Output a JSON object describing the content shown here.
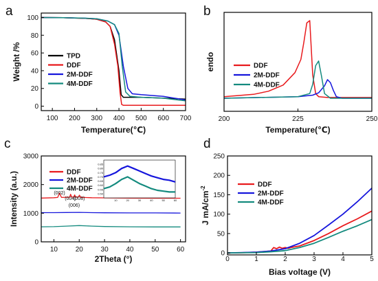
{
  "colors": {
    "TPD": "#000000",
    "DDF": "#e8191c",
    "2M-DDF": "#1515dc",
    "4M-DDF": "#138a7e"
  },
  "chart_data": [
    {
      "panel": "a",
      "type": "line",
      "xlabel": "Temperature(℃)",
      "ylabel": "Weight /%",
      "xlim": [
        50,
        700
      ],
      "ylim": [
        -5,
        105
      ],
      "xticks": [
        100,
        200,
        300,
        400,
        500,
        600,
        700
      ],
      "yticks": [
        0,
        20,
        40,
        60,
        80,
        100
      ],
      "legend": "center-right",
      "grid": false,
      "series": [
        {
          "name": "TPD",
          "color": "#000000",
          "x": [
            50,
            150,
            250,
            300,
            340,
            360,
            380,
            400,
            410,
            420,
            450,
            500,
            600,
            700
          ],
          "y": [
            100,
            99.7,
            99,
            98,
            95,
            90,
            75,
            40,
            13,
            10,
            10,
            10,
            9,
            8
          ]
        },
        {
          "name": "DDF",
          "color": "#e8191c",
          "x": [
            50,
            150,
            250,
            300,
            340,
            360,
            380,
            395,
            405,
            412,
            420,
            450,
            500,
            600,
            700
          ],
          "y": [
            100,
            99.7,
            99,
            98,
            95,
            90,
            70,
            45,
            15,
            2,
            1,
            1,
            1,
            1,
            1
          ]
        },
        {
          "name": "2M-DDF",
          "color": "#1515dc",
          "x": [
            50,
            150,
            250,
            300,
            350,
            380,
            400,
            420,
            440,
            460,
            500,
            600,
            700
          ],
          "y": [
            100,
            99.8,
            99.2,
            98.5,
            96,
            92,
            80,
            45,
            20,
            14,
            13,
            11,
            7
          ]
        },
        {
          "name": "4M-DDF",
          "color": "#138a7e",
          "x": [
            50,
            150,
            250,
            300,
            350,
            380,
            400,
            415,
            430,
            450,
            500,
            600,
            700
          ],
          "y": [
            100,
            99.8,
            99.2,
            98.5,
            96,
            92,
            82,
            45,
            16,
            11,
            10,
            9,
            6
          ]
        }
      ]
    },
    {
      "panel": "b",
      "type": "line",
      "xlabel": "Temperature(℃)",
      "ylabel": "endo",
      "xlim": [
        200,
        250
      ],
      "xticks": [
        200,
        225,
        250
      ],
      "legend": "center-left",
      "grid": false,
      "series": [
        {
          "name": "DDF",
          "color": "#e8191c",
          "x": [
            200,
            210,
            215,
            220,
            224,
            226,
            227,
            228,
            229,
            230,
            231,
            232,
            235,
            250
          ],
          "y": [
            0.02,
            0.05,
            0.09,
            0.17,
            0.33,
            0.5,
            0.72,
            0.97,
            1.0,
            0.3,
            0.06,
            0.02,
            0.01,
            0.01
          ]
        },
        {
          "name": "2M-DDF",
          "color": "#1515dc",
          "x": [
            200,
            225,
            230,
            232,
            234,
            235,
            236,
            237,
            238,
            240,
            250
          ],
          "y": [
            0.0,
            0.02,
            0.04,
            0.07,
            0.16,
            0.24,
            0.2,
            0.1,
            0.02,
            0.0,
            0.0
          ]
        },
        {
          "name": "4M-DDF",
          "color": "#138a7e",
          "x": [
            200,
            225,
            229,
            230,
            231,
            232,
            233,
            234,
            236,
            250
          ],
          "y": [
            0.0,
            0.02,
            0.06,
            0.18,
            0.42,
            0.48,
            0.28,
            0.06,
            0.0,
            0.0
          ]
        }
      ]
    },
    {
      "panel": "c",
      "type": "line",
      "xlabel": "2Theta (°)",
      "ylabel": "Intensity (a.u.)",
      "xlim": [
        5,
        62
      ],
      "ylim": [
        0,
        3000
      ],
      "xticks": [
        10,
        20,
        30,
        40,
        50,
        60
      ],
      "yticks": [
        0,
        1000,
        2000,
        3000
      ],
      "legend": "top-left",
      "grid": false,
      "peak_labels": [
        {
          "text": "(002)",
          "x": 12.2
        },
        {
          "text": "(004)",
          "x": 16.5
        },
        {
          "text": "(008)",
          "x": 20.0
        },
        {
          "text": "(006)",
          "x": 18.0
        }
      ],
      "series": [
        {
          "name": "DDF",
          "color": "#e8191c",
          "x": [
            5,
            10,
            11.5,
            12.2,
            13,
            16.2,
            16.6,
            17,
            17.8,
            18.2,
            18.6,
            19.6,
            20.1,
            20.6,
            25,
            30,
            40,
            50,
            60
          ],
          "y": [
            1530,
            1540,
            1550,
            1700,
            1550,
            1560,
            1660,
            1570,
            1560,
            1640,
            1565,
            1565,
            1630,
            1555,
            1540,
            1535,
            1530,
            1525,
            1525
          ]
        },
        {
          "name": "2M-DDF",
          "color": "#1515dc",
          "x": [
            5,
            10,
            15,
            20,
            25,
            30,
            40,
            50,
            60
          ],
          "y": [
            1020,
            1020,
            1025,
            1030,
            1020,
            1015,
            1010,
            1010,
            1005
          ]
        },
        {
          "name": "4M-DDF",
          "color": "#138a7e",
          "x": [
            5,
            10,
            15,
            20,
            25,
            30,
            40,
            50,
            60
          ],
          "y": [
            525,
            530,
            550,
            570,
            550,
            535,
            525,
            520,
            520
          ]
        }
      ],
      "inset": {
        "xlim": [
          0,
          60
        ],
        "ylim": [
          0.45,
          0.9
        ],
        "xticks": [
          10,
          20,
          30,
          40,
          50,
          60
        ],
        "yticks": [
          "0.85",
          "0.80",
          "0.75",
          "0.70",
          "0.65",
          "0.60",
          "0.55",
          "0.50"
        ],
        "series": [
          {
            "name": "2M-DDF",
            "color": "#1515dc",
            "x": [
              0,
              5,
              10,
              15,
              20,
              25,
              30,
              35,
              40,
              45,
              50,
              55,
              60
            ],
            "y": [
              0.7,
              0.72,
              0.75,
              0.8,
              0.83,
              0.8,
              0.77,
              0.74,
              0.71,
              0.69,
              0.67,
              0.66,
              0.64
            ]
          },
          {
            "name": "4M-DDF",
            "color": "#138a7e",
            "x": [
              0,
              5,
              10,
              15,
              20,
              25,
              30,
              35,
              40,
              45,
              50,
              55,
              60
            ],
            "y": [
              0.56,
              0.58,
              0.62,
              0.67,
              0.7,
              0.66,
              0.62,
              0.59,
              0.56,
              0.54,
              0.53,
              0.52,
              0.52
            ]
          }
        ]
      }
    },
    {
      "panel": "d",
      "type": "line",
      "xlabel": "Bias voltage (V)",
      "ylabel": "J mA/cm",
      "ylabel_sup": "-2",
      "xlim": [
        0,
        5
      ],
      "ylim": [
        -5,
        250
      ],
      "xticks": [
        0,
        1,
        2,
        3,
        4,
        5
      ],
      "yticks": [
        0,
        50,
        100,
        150,
        200,
        250
      ],
      "legend": "top-left",
      "grid": false,
      "series": [
        {
          "name": "DDF",
          "color": "#e8191c",
          "x": [
            0,
            0.5,
            1,
            1.5,
            1.6,
            1.7,
            1.8,
            1.9,
            2,
            2.1,
            2.2,
            2.5,
            3,
            3.5,
            4,
            4.5,
            5
          ],
          "y": [
            0,
            0.5,
            2,
            5,
            14,
            11,
            15,
            12,
            14,
            12,
            14,
            18,
            32,
            50,
            70,
            88,
            108
          ]
        },
        {
          "name": "2M-DDF",
          "color": "#1515dc",
          "x": [
            0,
            0.5,
            1,
            1.5,
            2,
            2.5,
            3,
            3.5,
            4,
            4.5,
            5
          ],
          "y": [
            0,
            1,
            2,
            5,
            11,
            25,
            45,
            72,
            100,
            132,
            167
          ]
        },
        {
          "name": "4M-DDF",
          "color": "#138a7e",
          "x": [
            0,
            0.5,
            1,
            1.5,
            2,
            2.5,
            3,
            3.5,
            4,
            4.5,
            5
          ],
          "y": [
            0,
            0.5,
            1,
            3,
            6,
            14,
            25,
            40,
            56,
            70,
            86
          ]
        }
      ]
    }
  ]
}
